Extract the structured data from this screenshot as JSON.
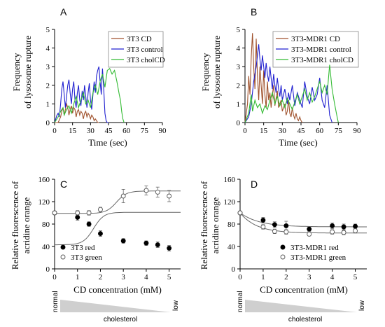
{
  "panels": {
    "A": {
      "letter": "A",
      "ylabel1": "Frequency",
      "ylabel2": "of lysosome rupture",
      "xlabel": "Time (sec)"
    },
    "B": {
      "letter": "B",
      "ylabel1": "Frequency",
      "ylabel2": "of lysosome rupture",
      "xlabel": "Time (sec)"
    },
    "C": {
      "letter": "C",
      "ylabel1": "Relative fluorescence of",
      "ylabel2": "acridine orange",
      "xlabel": "CD concentration (mM)"
    },
    "D": {
      "letter": "D",
      "ylabel1": "Relative fluorescence of",
      "ylabel2": "acridine orange",
      "xlabel": "CD concentration (mM)"
    }
  },
  "wedges": [
    {
      "left": "normal",
      "right": "low",
      "label": "cholesterol"
    },
    {
      "left": "normal",
      "right": "low",
      "label": "cholesterol"
    }
  ],
  "chart_data": [
    {
      "id": "A",
      "type": "line",
      "xlim": [
        0,
        90
      ],
      "ylim": [
        0,
        5
      ],
      "xticks": [
        0,
        15,
        30,
        45,
        60,
        75,
        90
      ],
      "yticks": [
        0,
        1,
        2,
        3,
        4,
        5
      ],
      "legend_position": "top-right",
      "series": [
        {
          "name": "3T3 CD",
          "color": "#a0522d",
          "x": [
            0,
            3,
            5,
            6,
            7,
            8,
            9,
            10,
            11,
            12,
            13,
            14,
            15,
            16,
            17,
            18,
            19,
            20,
            21,
            22,
            23,
            24,
            25,
            26,
            27,
            28,
            29,
            30,
            31,
            32,
            33,
            34,
            35,
            36,
            37
          ],
          "y": [
            0,
            0,
            0.3,
            0.6,
            0.8,
            0.4,
            0.7,
            1.0,
            0.8,
            0.4,
            0.7,
            0.9,
            0.5,
            0.8,
            0.7,
            0.3,
            0.6,
            0.7,
            0.4,
            0.6,
            0.5,
            0.2,
            0.5,
            0.6,
            0.3,
            0.5,
            0.4,
            0.2,
            0.4,
            0.3,
            0.1,
            0.2,
            0.1,
            0,
            0
          ]
        },
        {
          "name": "3T3 control",
          "color": "#2020d0",
          "x": [
            0,
            1,
            2,
            3,
            4,
            5,
            6,
            7,
            8,
            9,
            10,
            11,
            12,
            13,
            14,
            15,
            16,
            17,
            18,
            19,
            20,
            21,
            22,
            23,
            24,
            25,
            26,
            27,
            28,
            29,
            30,
            31,
            32,
            33,
            34,
            35,
            36,
            37,
            38,
            39,
            40,
            41,
            42,
            43,
            44,
            45
          ],
          "y": [
            0,
            0.2,
            0.4,
            0.5,
            0.3,
            1.0,
            1.8,
            2.2,
            1.5,
            0.8,
            1.4,
            2.0,
            2.3,
            1.6,
            1.0,
            1.8,
            2.2,
            1.2,
            0.8,
            1.6,
            2.0,
            1.2,
            0.9,
            1.7,
            1.2,
            2.0,
            1.4,
            0.8,
            1.6,
            2.1,
            1.2,
            0.7,
            1.5,
            2.2,
            1.6,
            2.5,
            2.8,
            3.0,
            2.2,
            1.5,
            2.9,
            1.8,
            0.5,
            0.1,
            0,
            0
          ]
        },
        {
          "name": "3T3 cholCD",
          "color": "#33bb33",
          "x": [
            0,
            3,
            5,
            7,
            8,
            10,
            12,
            14,
            16,
            18,
            20,
            22,
            24,
            26,
            28,
            30,
            32,
            34,
            36,
            38,
            40,
            42,
            44,
            46,
            48,
            50,
            52,
            54,
            55,
            56,
            57,
            58
          ],
          "y": [
            0,
            0.3,
            0.6,
            0.8,
            0.4,
            0.7,
            0.9,
            0.5,
            1.0,
            1.4,
            0.8,
            1.2,
            1.6,
            1.0,
            1.2,
            0.8,
            1.6,
            2.0,
            1.5,
            2.2,
            2.6,
            1.9,
            2.8,
            2.9,
            2.6,
            2.8,
            2.2,
            1.5,
            1.2,
            0.6,
            0.2,
            0
          ]
        }
      ]
    },
    {
      "id": "B",
      "type": "line",
      "xlim": [
        0,
        90
      ],
      "ylim": [
        0,
        5
      ],
      "xticks": [
        0,
        15,
        30,
        45,
        60,
        75,
        90
      ],
      "yticks": [
        0,
        1,
        2,
        3,
        4,
        5
      ],
      "legend_position": "top-right",
      "series": [
        {
          "name": "3T3-MDR1 CD",
          "color": "#a0522d",
          "x": [
            0,
            2,
            3,
            4,
            5,
            6,
            7,
            8,
            9,
            10,
            11,
            12,
            13,
            14,
            15,
            16,
            17,
            18,
            19,
            20,
            21,
            22,
            23,
            24,
            25,
            26,
            27,
            28,
            29,
            30,
            31,
            32,
            33,
            34,
            35,
            36,
            37,
            38,
            39,
            40,
            41,
            42,
            43,
            44,
            45,
            46
          ],
          "y": [
            0,
            1.0,
            2.5,
            1.5,
            3.5,
            4.8,
            3.0,
            1.8,
            4.5,
            2.5,
            1.2,
            3.0,
            2.0,
            1.0,
            2.8,
            1.5,
            0.8,
            2.2,
            1.2,
            1.6,
            0.8,
            1.5,
            2.0,
            0.9,
            1.3,
            1.7,
            0.8,
            1.0,
            1.2,
            0.6,
            0.8,
            1.0,
            0.4,
            0.6,
            1.2,
            0.5,
            0.3,
            0.8,
            0.4,
            0.2,
            0.5,
            0.2,
            0.1,
            0.3,
            0.1,
            0
          ]
        },
        {
          "name": "3T3-MDR1 control",
          "color": "#2020d0",
          "x": [
            0,
            3,
            5,
            7,
            9,
            11,
            12,
            13,
            14,
            15,
            16,
            17,
            18,
            19,
            20,
            21,
            22,
            23,
            24,
            25,
            26,
            27,
            28,
            29,
            30,
            32,
            34,
            35,
            36,
            38,
            40,
            42,
            44,
            46,
            48,
            50,
            52,
            54,
            56,
            58,
            60,
            62,
            64,
            66,
            68,
            70
          ],
          "y": [
            0,
            0.3,
            1.0,
            2.2,
            3.0,
            4.2,
            3.4,
            2.8,
            3.6,
            3.0,
            2.4,
            3.2,
            2.6,
            2.2,
            3.0,
            2.4,
            1.8,
            2.6,
            2.0,
            1.6,
            2.4,
            1.8,
            1.4,
            2.0,
            1.2,
            1.8,
            1.0,
            1.6,
            1.2,
            2.0,
            0.9,
            1.6,
            1.2,
            0.8,
            2.2,
            1.4,
            1.0,
            1.9,
            1.2,
            1.5,
            2.4,
            1.2,
            0.8,
            2.0,
            0.4,
            0
          ]
        },
        {
          "name": "3T3-MDR1 cholCD",
          "color": "#33bb33",
          "x": [
            0,
            3,
            5,
            6,
            8,
            10,
            12,
            14,
            16,
            18,
            20,
            22,
            24,
            26,
            28,
            30,
            32,
            34,
            36,
            38,
            40,
            42,
            44,
            46,
            48,
            50,
            52,
            54,
            56,
            58,
            60,
            62,
            64,
            66,
            68,
            70,
            72,
            74,
            75
          ],
          "y": [
            0,
            0.5,
            1.5,
            0.6,
            1.2,
            0.8,
            1.0,
            0.5,
            0.9,
            0.7,
            1.2,
            1.6,
            1.0,
            1.4,
            0.9,
            1.2,
            0.8,
            1.3,
            1.0,
            0.7,
            1.1,
            1.5,
            1.0,
            1.4,
            1.8,
            1.2,
            1.6,
            1.1,
            1.4,
            1.8,
            2.2,
            1.6,
            2.0,
            1.5,
            3.1,
            1.8,
            1.0,
            0.3,
            0
          ]
        }
      ]
    },
    {
      "id": "C",
      "type": "scatter",
      "xlim": [
        0,
        5.5
      ],
      "ylim": [
        0,
        160
      ],
      "xticks": [
        0,
        1,
        2,
        3,
        4,
        5
      ],
      "yticks": [
        0,
        40,
        80,
        120,
        160
      ],
      "legend_position": "bottom-left",
      "series": [
        {
          "name": "3T3 red",
          "marker": "filled",
          "x": [
            0,
            1,
            1.5,
            2,
            3,
            4,
            4.5,
            5
          ],
          "y": [
            100,
            92,
            80,
            63,
            50,
            46,
            43,
            37
          ],
          "err": [
            3,
            5,
            4,
            5,
            4,
            4,
            5,
            5
          ],
          "fit": {
            "bottom": 43,
            "top": 101,
            "mid": 1.7,
            "slope": 4.5
          }
        },
        {
          "name": "3T3 green",
          "marker": "open",
          "x": [
            0,
            1,
            1.5,
            2,
            3,
            4,
            4.5,
            5
          ],
          "y": [
            100,
            100,
            100,
            106,
            130,
            140,
            137,
            130
          ],
          "err": [
            2,
            4,
            4,
            4,
            12,
            8,
            9,
            10
          ],
          "fit": {
            "bottom": 99,
            "top": 139,
            "mid": 2.7,
            "slope": 4.5
          }
        }
      ]
    },
    {
      "id": "D",
      "type": "scatter",
      "xlim": [
        0,
        5.5
      ],
      "ylim": [
        0,
        160
      ],
      "xticks": [
        0,
        1,
        2,
        3,
        4,
        5
      ],
      "yticks": [
        0,
        40,
        80,
        120,
        160
      ],
      "legend_position": "bottom-right",
      "series": [
        {
          "name": "3T3-MDR1 red",
          "marker": "filled",
          "x": [
            0,
            1,
            1.5,
            2,
            3,
            4,
            4.5,
            5
          ],
          "y": [
            100,
            87,
            79,
            77,
            71,
            77,
            75,
            76
          ],
          "err": [
            2,
            5,
            5,
            8,
            4,
            5,
            5,
            4
          ],
          "fit": {
            "plateau": 75,
            "start": 100,
            "k": 1.2
          }
        },
        {
          "name": "3T3-MDR1 green",
          "marker": "open",
          "x": [
            0,
            1,
            1.5,
            2,
            3,
            4,
            4.5,
            5
          ],
          "y": [
            100,
            75,
            67,
            66,
            62,
            66,
            65,
            68
          ],
          "err": [
            2,
            4,
            4,
            4,
            3,
            4,
            4,
            4
          ],
          "fit": {
            "plateau": 64,
            "start": 100,
            "k": 1.4
          }
        }
      ]
    }
  ]
}
